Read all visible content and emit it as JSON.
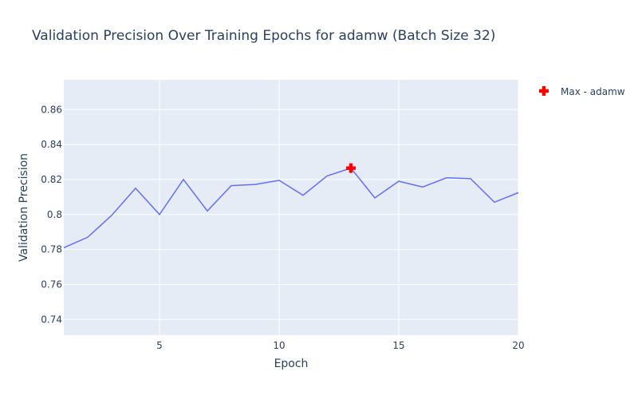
{
  "chart_data": {
    "type": "line",
    "title": "Validation Precision Over Training Epochs for adamw (Batch Size 32)",
    "xlabel": "Epoch",
    "ylabel": "Validation Precision",
    "xlim": [
      1,
      20
    ],
    "ylim": [
      0.731,
      0.877
    ],
    "x_ticks": [
      5,
      10,
      15,
      20
    ],
    "y_ticks": [
      0.74,
      0.76,
      0.78,
      0.8,
      0.82,
      0.84,
      0.86
    ],
    "y_tick_labels": [
      "0.74",
      "0.76",
      "0.78",
      "0.8",
      "0.82",
      "0.84",
      "0.86"
    ],
    "grid": true,
    "legend_position": "top-right",
    "series": [
      {
        "type": "line",
        "color": "#636efa",
        "x": [
          1,
          2,
          3,
          4,
          5,
          6,
          7,
          8,
          9,
          10,
          11,
          12,
          13,
          14,
          15,
          16,
          17,
          18,
          19,
          20
        ],
        "y": [
          0.781,
          0.787,
          0.7995,
          0.815,
          0.8,
          0.82,
          0.802,
          0.8165,
          0.8172,
          0.8195,
          0.811,
          0.822,
          0.8265,
          0.8095,
          0.819,
          0.8157,
          0.821,
          0.8205,
          0.807,
          0.8125
        ]
      },
      {
        "type": "marker",
        "name": "Max - adamw",
        "marker": "cross",
        "color": "#ff0000",
        "x": [
          13
        ],
        "y": [
          0.8265
        ]
      }
    ]
  }
}
